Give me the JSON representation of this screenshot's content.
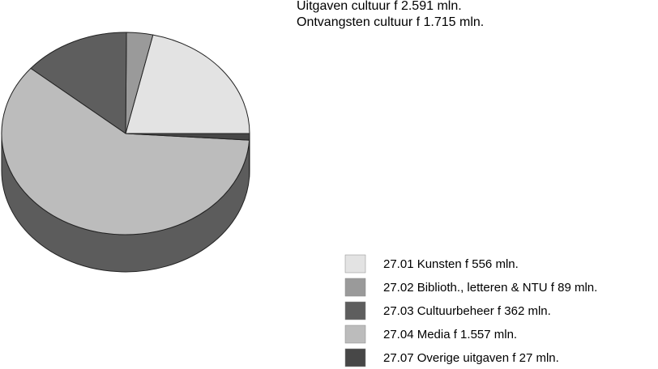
{
  "chart_data": {
    "type": "pie",
    "title": "Uitgaven cultuur f 2.591 mln.",
    "subtitle": "Ontvangsten cultuur f 1.715 mln.",
    "categories": [
      "27.01 Kunsten f 556 mln.",
      "27.02 Biblioth., letteren & NTU f 89 mln.",
      "27.03 Cultuurbeheer f 362 mln.",
      "27.04 Media f 1.557 mln.",
      "27.07 Overige uitgaven f 27 mln."
    ],
    "values": [
      556,
      89,
      362,
      1557,
      27
    ],
    "colors": [
      "#e3e3e3",
      "#9a9a9a",
      "#5e5e5e",
      "#bcbcbc",
      "#474747"
    ]
  }
}
